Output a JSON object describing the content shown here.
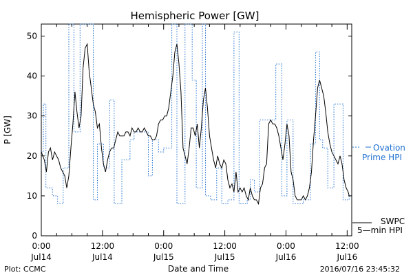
{
  "chart_data": {
    "type": "line",
    "title": "Hemispheric Power [GW]",
    "ylabel": "P [GW]",
    "xlabel": "Date and Time",
    "ylim": [
      0,
      53
    ],
    "xlim_hours": [
      0,
      60
    ],
    "y_ticks": [
      0,
      10,
      20,
      30,
      40,
      50
    ],
    "x_ticks": [
      {
        "hour": 0,
        "label_top": "0:00",
        "label_bottom": "Jul14"
      },
      {
        "hour": 12,
        "label_top": "12:00",
        "label_bottom": "Jul14"
      },
      {
        "hour": 24,
        "label_top": "0:00",
        "label_bottom": "Jul15"
      },
      {
        "hour": 36,
        "label_top": "12:00",
        "label_bottom": "Jul15"
      },
      {
        "hour": 48,
        "label_top": "0:00",
        "label_bottom": "Jul16"
      },
      {
        "hour": 60,
        "label_top": "12:00",
        "label_bottom": "Jul16"
      }
    ],
    "colors": {
      "ovation": "#1f6fd1",
      "swpc": "#000000",
      "axis": "#000000"
    },
    "series": [
      {
        "name": "Ovation Prime HPI",
        "legend_line1": "Ovation",
        "legend_line2": "Prime HPI",
        "style": "dotted-step",
        "color": "#1f6fd1",
        "points": [
          [
            0.0,
            21
          ],
          [
            0.4,
            33
          ],
          [
            0.9,
            12
          ],
          [
            2.2,
            10
          ],
          [
            3.2,
            8
          ],
          [
            4.3,
            17
          ],
          [
            5.4,
            53
          ],
          [
            6.4,
            26
          ],
          [
            7.6,
            53
          ],
          [
            8.8,
            53
          ],
          [
            10.2,
            9
          ],
          [
            11.0,
            23
          ],
          [
            12.2,
            17
          ],
          [
            13.4,
            34
          ],
          [
            14.3,
            8
          ],
          [
            15.8,
            19
          ],
          [
            17.4,
            24
          ],
          [
            18.2,
            26
          ],
          [
            19.4,
            26
          ],
          [
            21.0,
            15
          ],
          [
            21.8,
            24
          ],
          [
            23.0,
            21
          ],
          [
            24.0,
            22
          ],
          [
            25.6,
            53
          ],
          [
            26.6,
            8
          ],
          [
            28.2,
            53
          ],
          [
            29.6,
            39
          ],
          [
            30.4,
            12
          ],
          [
            31.6,
            53
          ],
          [
            32.2,
            10
          ],
          [
            33.2,
            9
          ],
          [
            34.4,
            17
          ],
          [
            35.4,
            8
          ],
          [
            36.6,
            9
          ],
          [
            37.8,
            51
          ],
          [
            38.8,
            8
          ],
          [
            40.4,
            9
          ],
          [
            41.0,
            14
          ],
          [
            41.8,
            11
          ],
          [
            42.8,
            29
          ],
          [
            44.2,
            29
          ],
          [
            46.0,
            43
          ],
          [
            47.2,
            10
          ],
          [
            48.2,
            29
          ],
          [
            49.4,
            8
          ],
          [
            51.4,
            9
          ],
          [
            52.8,
            23
          ],
          [
            53.8,
            46
          ],
          [
            54.6,
            24
          ],
          [
            55.2,
            22
          ],
          [
            56.2,
            12
          ],
          [
            57.4,
            33
          ],
          [
            59.2,
            9
          ],
          [
            60.4,
            10
          ]
        ]
      },
      {
        "name": "SWPC 5-min HPI",
        "legend_line1": "SWPC",
        "legend_line2": "5—min HPI",
        "style": "solid",
        "color": "#000000",
        "points": [
          [
            0.0,
            21
          ],
          [
            0.6,
            19
          ],
          [
            1.0,
            16
          ],
          [
            1.4,
            21
          ],
          [
            1.8,
            22
          ],
          [
            2.2,
            19
          ],
          [
            2.6,
            21
          ],
          [
            3.0,
            20
          ],
          [
            3.4,
            19
          ],
          [
            3.8,
            17
          ],
          [
            4.2,
            16
          ],
          [
            4.6,
            15
          ],
          [
            5.0,
            12
          ],
          [
            5.4,
            15
          ],
          [
            5.8,
            22
          ],
          [
            6.2,
            28
          ],
          [
            6.6,
            36
          ],
          [
            7.0,
            31
          ],
          [
            7.4,
            27
          ],
          [
            7.8,
            30
          ],
          [
            8.2,
            42
          ],
          [
            8.6,
            47
          ],
          [
            9.0,
            48
          ],
          [
            9.4,
            41
          ],
          [
            9.8,
            37
          ],
          [
            10.2,
            33
          ],
          [
            10.6,
            31
          ],
          [
            11.0,
            27
          ],
          [
            11.4,
            28
          ],
          [
            11.8,
            22
          ],
          [
            12.2,
            18
          ],
          [
            12.6,
            16
          ],
          [
            13.0,
            19
          ],
          [
            13.4,
            21
          ],
          [
            13.8,
            22
          ],
          [
            14.2,
            22
          ],
          [
            14.6,
            24
          ],
          [
            15.0,
            26
          ],
          [
            15.4,
            25
          ],
          [
            15.8,
            25
          ],
          [
            16.2,
            25
          ],
          [
            16.6,
            26
          ],
          [
            17.0,
            26
          ],
          [
            17.4,
            25
          ],
          [
            17.8,
            27
          ],
          [
            18.2,
            26
          ],
          [
            18.6,
            26
          ],
          [
            19.0,
            27
          ],
          [
            19.4,
            26
          ],
          [
            19.8,
            26
          ],
          [
            20.2,
            27
          ],
          [
            20.6,
            26
          ],
          [
            21.0,
            25
          ],
          [
            21.4,
            25
          ],
          [
            21.8,
            24
          ],
          [
            22.2,
            24
          ],
          [
            22.6,
            25
          ],
          [
            23.0,
            28
          ],
          [
            23.4,
            29
          ],
          [
            23.8,
            29
          ],
          [
            24.2,
            30
          ],
          [
            24.6,
            30
          ],
          [
            25.0,
            32
          ],
          [
            25.4,
            36
          ],
          [
            25.8,
            40
          ],
          [
            26.2,
            46
          ],
          [
            26.6,
            48
          ],
          [
            27.0,
            43
          ],
          [
            27.4,
            36
          ],
          [
            27.8,
            22
          ],
          [
            28.2,
            20
          ],
          [
            28.6,
            18
          ],
          [
            29.0,
            22
          ],
          [
            29.4,
            27
          ],
          [
            29.8,
            27
          ],
          [
            30.2,
            25
          ],
          [
            30.6,
            28
          ],
          [
            31.0,
            22
          ],
          [
            31.4,
            27
          ],
          [
            31.8,
            34
          ],
          [
            32.2,
            37
          ],
          [
            32.6,
            32
          ],
          [
            33.0,
            25
          ],
          [
            33.4,
            22
          ],
          [
            33.8,
            19
          ],
          [
            34.2,
            17
          ],
          [
            34.6,
            20
          ],
          [
            35.0,
            18
          ],
          [
            35.4,
            17
          ],
          [
            35.8,
            19
          ],
          [
            36.2,
            18
          ],
          [
            36.6,
            14
          ],
          [
            37.0,
            12
          ],
          [
            37.4,
            13
          ],
          [
            37.8,
            11
          ],
          [
            38.2,
            16
          ],
          [
            38.6,
            11
          ],
          [
            39.0,
            12
          ],
          [
            39.4,
            11
          ],
          [
            39.8,
            12
          ],
          [
            40.2,
            10
          ],
          [
            40.6,
            9
          ],
          [
            41.0,
            12
          ],
          [
            41.4,
            10
          ],
          [
            41.8,
            9
          ],
          [
            42.2,
            9
          ],
          [
            42.6,
            8
          ],
          [
            43.0,
            12
          ],
          [
            43.4,
            13
          ],
          [
            43.8,
            17
          ],
          [
            44.2,
            18
          ],
          [
            44.6,
            28
          ],
          [
            45.0,
            29
          ],
          [
            45.4,
            28
          ],
          [
            45.8,
            28
          ],
          [
            46.2,
            27
          ],
          [
            46.6,
            25
          ],
          [
            47.0,
            22
          ],
          [
            47.4,
            19
          ],
          [
            47.8,
            23
          ],
          [
            48.2,
            28
          ],
          [
            48.6,
            25
          ],
          [
            49.0,
            16
          ],
          [
            49.4,
            14
          ],
          [
            49.8,
            10
          ],
          [
            50.2,
            9
          ],
          [
            50.6,
            9
          ],
          [
            51.0,
            9
          ],
          [
            51.4,
            10
          ],
          [
            51.8,
            9
          ],
          [
            52.2,
            10
          ],
          [
            52.6,
            12
          ],
          [
            53.0,
            16
          ],
          [
            53.4,
            24
          ],
          [
            53.8,
            30
          ],
          [
            54.2,
            37
          ],
          [
            54.6,
            39
          ],
          [
            55.0,
            37
          ],
          [
            55.4,
            35
          ],
          [
            55.8,
            31
          ],
          [
            56.2,
            26
          ],
          [
            56.6,
            23
          ],
          [
            57.0,
            21
          ],
          [
            57.4,
            20
          ],
          [
            57.8,
            19
          ],
          [
            58.2,
            18
          ],
          [
            58.6,
            20
          ],
          [
            59.0,
            18
          ],
          [
            59.4,
            14
          ],
          [
            59.8,
            12
          ],
          [
            60.2,
            11
          ],
          [
            60.4,
            10
          ]
        ]
      }
    ],
    "footer_left": "Plot: CCMC",
    "timestamp": "2016/07/16 23:45:32"
  }
}
